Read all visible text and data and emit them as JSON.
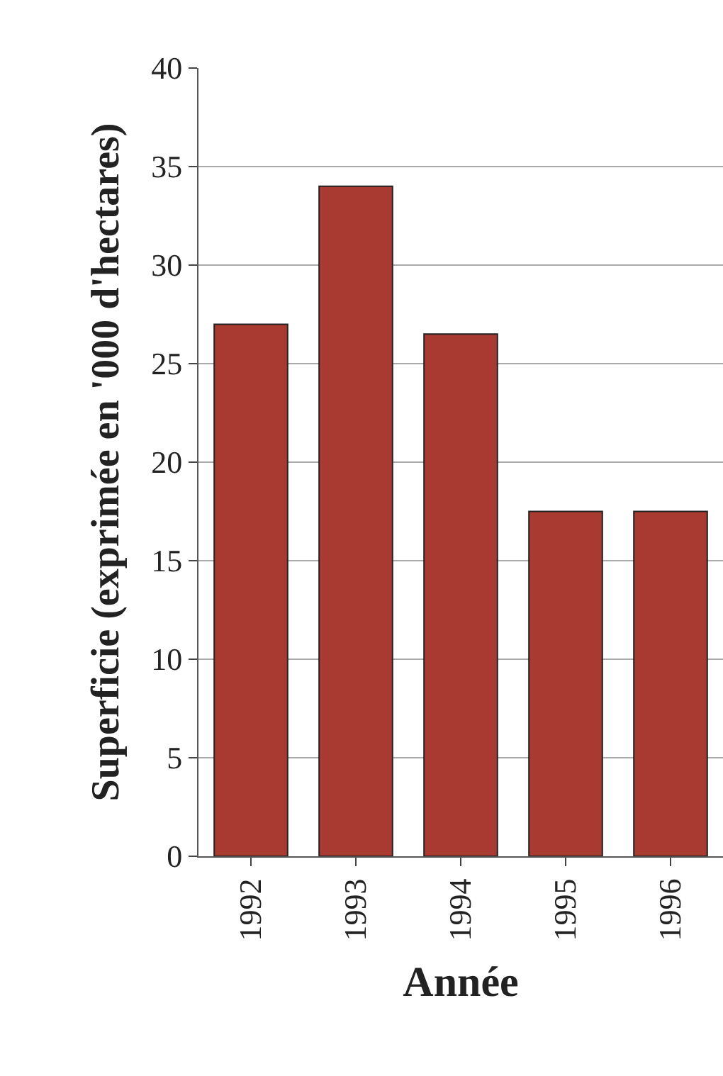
{
  "chart_data": {
    "type": "bar",
    "xlabel": "Année",
    "ylabel": "Superficie (exprimée en '000 d'hectares)",
    "categories": [
      "1992",
      "1993",
      "1994",
      "1995",
      "1996"
    ],
    "values": [
      27,
      34,
      26.5,
      17.5,
      17.5
    ],
    "color": "#a83a32",
    "ylim": [
      0,
      40
    ],
    "yticks": [
      0,
      5,
      10,
      15,
      20,
      25,
      30,
      35,
      40
    ],
    "grid": "y"
  }
}
